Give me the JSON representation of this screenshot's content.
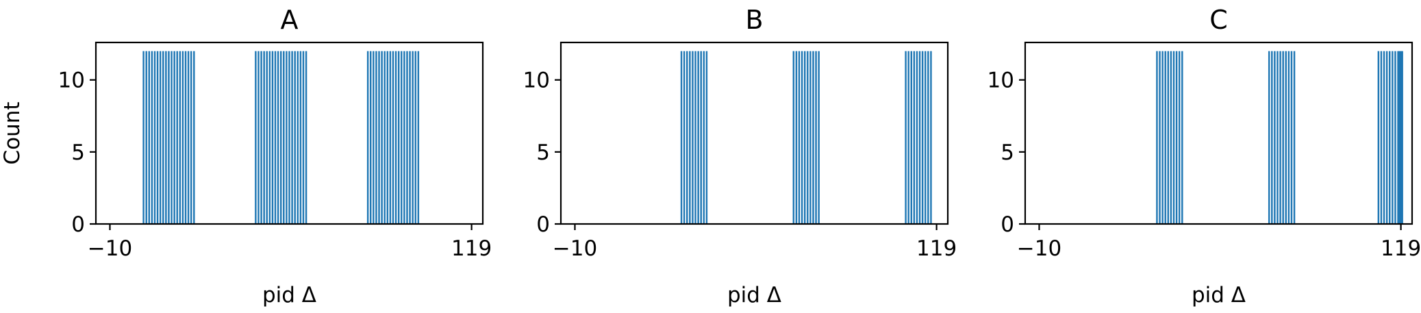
{
  "chart_data": [
    {
      "type": "bar",
      "title": "A",
      "xlabel": "pid Δ",
      "ylabel": "Count",
      "xlim": [
        -15,
        123
      ],
      "ylim": [
        0,
        12.6
      ],
      "xticks": [
        -10,
        119
      ],
      "xtick_labels": [
        "−10",
        "119"
      ],
      "yticks": [
        0,
        5,
        10
      ],
      "ytick_labels": [
        "0",
        "5",
        "10"
      ],
      "bar_width": 0.6,
      "bars": [
        {
          "x": 2,
          "value": 12
        },
        {
          "x": 3,
          "value": 12
        },
        {
          "x": 4,
          "value": 12
        },
        {
          "x": 5,
          "value": 12
        },
        {
          "x": 6,
          "value": 12
        },
        {
          "x": 7,
          "value": 12
        },
        {
          "x": 8,
          "value": 12
        },
        {
          "x": 9,
          "value": 12
        },
        {
          "x": 10,
          "value": 12
        },
        {
          "x": 11,
          "value": 12
        },
        {
          "x": 12,
          "value": 12
        },
        {
          "x": 13,
          "value": 12
        },
        {
          "x": 14,
          "value": 12
        },
        {
          "x": 15,
          "value": 12
        },
        {
          "x": 16,
          "value": 12
        },
        {
          "x": 17,
          "value": 12
        },
        {
          "x": 18,
          "value": 12
        },
        {
          "x": 19,
          "value": 12
        },
        {
          "x": 20,
          "value": 12
        },
        {
          "x": 42,
          "value": 12
        },
        {
          "x": 43,
          "value": 12
        },
        {
          "x": 44,
          "value": 12
        },
        {
          "x": 45,
          "value": 12
        },
        {
          "x": 46,
          "value": 12
        },
        {
          "x": 47,
          "value": 12
        },
        {
          "x": 48,
          "value": 12
        },
        {
          "x": 49,
          "value": 12
        },
        {
          "x": 50,
          "value": 12
        },
        {
          "x": 51,
          "value": 12
        },
        {
          "x": 52,
          "value": 12
        },
        {
          "x": 53,
          "value": 12
        },
        {
          "x": 54,
          "value": 12
        },
        {
          "x": 55,
          "value": 12
        },
        {
          "x": 56,
          "value": 12
        },
        {
          "x": 57,
          "value": 12
        },
        {
          "x": 58,
          "value": 12
        },
        {
          "x": 59,
          "value": 12
        },
        {
          "x": 60,
          "value": 12
        },
        {
          "x": 82,
          "value": 12
        },
        {
          "x": 83,
          "value": 12
        },
        {
          "x": 84,
          "value": 12
        },
        {
          "x": 85,
          "value": 12
        },
        {
          "x": 86,
          "value": 12
        },
        {
          "x": 87,
          "value": 12
        },
        {
          "x": 88,
          "value": 12
        },
        {
          "x": 89,
          "value": 12
        },
        {
          "x": 90,
          "value": 12
        },
        {
          "x": 91,
          "value": 12
        },
        {
          "x": 92,
          "value": 12
        },
        {
          "x": 93,
          "value": 12
        },
        {
          "x": 94,
          "value": 12
        },
        {
          "x": 95,
          "value": 12
        },
        {
          "x": 96,
          "value": 12
        },
        {
          "x": 97,
          "value": 12
        },
        {
          "x": 98,
          "value": 12
        },
        {
          "x": 99,
          "value": 12
        },
        {
          "x": 100,
          "value": 12
        }
      ],
      "color": "#1f77b4"
    },
    {
      "type": "bar",
      "title": "B",
      "xlabel": "pid Δ",
      "ylabel": "",
      "xlim": [
        -15,
        123
      ],
      "ylim": [
        0,
        12.6
      ],
      "xticks": [
        -10,
        119
      ],
      "xtick_labels": [
        "−10",
        "119"
      ],
      "yticks": [
        0,
        5,
        10
      ],
      "ytick_labels": [
        "0",
        "5",
        "10"
      ],
      "bar_width": 0.6,
      "bars": [
        {
          "x": 28,
          "value": 12
        },
        {
          "x": 29,
          "value": 12
        },
        {
          "x": 30,
          "value": 12
        },
        {
          "x": 31,
          "value": 12
        },
        {
          "x": 32,
          "value": 12
        },
        {
          "x": 33,
          "value": 12
        },
        {
          "x": 34,
          "value": 12
        },
        {
          "x": 35,
          "value": 12
        },
        {
          "x": 36,
          "value": 12
        },
        {
          "x": 37,
          "value": 12
        },
        {
          "x": 68,
          "value": 12
        },
        {
          "x": 69,
          "value": 12
        },
        {
          "x": 70,
          "value": 12
        },
        {
          "x": 71,
          "value": 12
        },
        {
          "x": 72,
          "value": 12
        },
        {
          "x": 73,
          "value": 12
        },
        {
          "x": 74,
          "value": 12
        },
        {
          "x": 75,
          "value": 12
        },
        {
          "x": 76,
          "value": 12
        },
        {
          "x": 77,
          "value": 12
        },
        {
          "x": 108,
          "value": 12
        },
        {
          "x": 109,
          "value": 12
        },
        {
          "x": 110,
          "value": 12
        },
        {
          "x": 111,
          "value": 12
        },
        {
          "x": 112,
          "value": 12
        },
        {
          "x": 113,
          "value": 12
        },
        {
          "x": 114,
          "value": 12
        },
        {
          "x": 115,
          "value": 12
        },
        {
          "x": 116,
          "value": 12
        },
        {
          "x": 117,
          "value": 12
        }
      ],
      "color": "#1f77b4"
    },
    {
      "type": "bar",
      "title": "C",
      "xlabel": "pid Δ",
      "ylabel": "",
      "xlim": [
        -15,
        123
      ],
      "ylim": [
        0,
        12.6
      ],
      "xticks": [
        -10,
        119
      ],
      "xtick_labels": [
        "−10",
        "119"
      ],
      "yticks": [
        0,
        5,
        10
      ],
      "ytick_labels": [
        "0",
        "5",
        "10"
      ],
      "bar_width": 0.6,
      "bars": [
        {
          "x": 32,
          "value": 12
        },
        {
          "x": 33,
          "value": 12
        },
        {
          "x": 34,
          "value": 12
        },
        {
          "x": 35,
          "value": 12
        },
        {
          "x": 36,
          "value": 12
        },
        {
          "x": 37,
          "value": 12
        },
        {
          "x": 38,
          "value": 12
        },
        {
          "x": 39,
          "value": 12
        },
        {
          "x": 40,
          "value": 12
        },
        {
          "x": 41,
          "value": 12
        },
        {
          "x": 72,
          "value": 12
        },
        {
          "x": 73,
          "value": 12
        },
        {
          "x": 74,
          "value": 12
        },
        {
          "x": 75,
          "value": 12
        },
        {
          "x": 76,
          "value": 12
        },
        {
          "x": 77,
          "value": 12
        },
        {
          "x": 78,
          "value": 12
        },
        {
          "x": 79,
          "value": 12
        },
        {
          "x": 80,
          "value": 12
        },
        {
          "x": 81,
          "value": 12
        },
        {
          "x": 111,
          "value": 12
        },
        {
          "x": 112,
          "value": 12
        },
        {
          "x": 113,
          "value": 12
        },
        {
          "x": 114,
          "value": 12
        },
        {
          "x": 115,
          "value": 12
        },
        {
          "x": 116,
          "value": 12
        },
        {
          "x": 117,
          "value": 12
        },
        {
          "x": 118,
          "value": 12
        },
        {
          "x": 118.5,
          "value": 12
        },
        {
          "x": 119,
          "value": 12
        },
        {
          "x": 119.5,
          "value": 12
        }
      ],
      "color": "#1f77b4"
    }
  ]
}
